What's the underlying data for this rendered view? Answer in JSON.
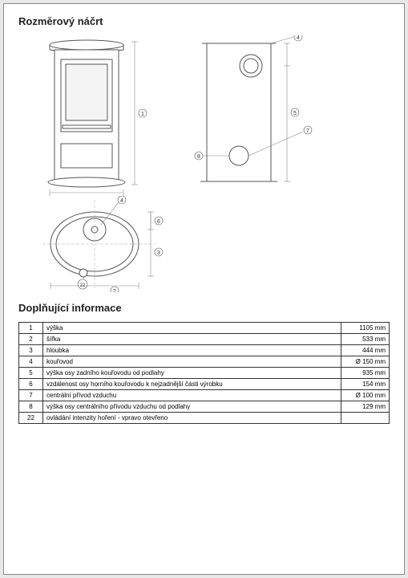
{
  "heading_sketch": "Rozměrový náčrt",
  "heading_info": "Doplňující informace",
  "diagram": {
    "stroke": "#555555",
    "stroke_thin": "#888888",
    "fill_bg": "#ffffff",
    "fill_glass": "#f5f5f5",
    "callouts": [
      "1",
      "2",
      "3",
      "4",
      "5",
      "6",
      "7",
      "8",
      "22"
    ]
  },
  "rows": [
    {
      "n": "1",
      "desc": "výška",
      "val": "1105 mm"
    },
    {
      "n": "2",
      "desc": "šířka",
      "val": "533 mm"
    },
    {
      "n": "3",
      "desc": "hloubka",
      "val": "444 mm"
    },
    {
      "n": "4",
      "desc": "kouřovod",
      "val": "Ø 150 mm"
    },
    {
      "n": "5",
      "desc": "výška osy zadního kouřovodu od podlahy",
      "val": "935 mm"
    },
    {
      "n": "6",
      "desc": "vzdálenost osy horního kouřovodu k nejzadnější části výrobku",
      "val": "154 mm"
    },
    {
      "n": "7",
      "desc": "centrální přívod vzduchu",
      "val": "Ø 100 mm"
    },
    {
      "n": "8",
      "desc": "výška osy centrálního přívodu vzduchu od podlahy",
      "val": "129 mm"
    },
    {
      "n": "22",
      "desc": "ovládání intenzity hoření - vpravo otevřeno",
      "val": ""
    }
  ]
}
